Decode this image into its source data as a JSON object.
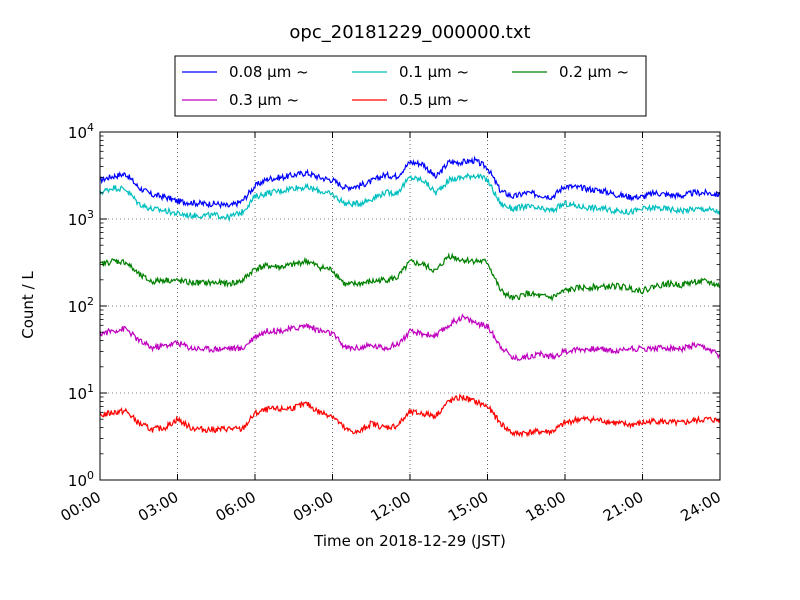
{
  "chart_data": {
    "type": "line",
    "title": "opc_20181229_000000.txt",
    "xlabel": "Time on 2018-12-29 (JST)",
    "ylabel": "Count / L",
    "y_scale": "log",
    "ylim": [
      1,
      10000
    ],
    "xlim_hours": [
      0,
      24
    ],
    "x_tick_labels": [
      "00:00",
      "03:00",
      "06:00",
      "09:00",
      "12:00",
      "15:00",
      "18:00",
      "21:00",
      "24:00"
    ],
    "y_tick_labels": [
      {
        "base": "10",
        "exp": "0"
      },
      {
        "base": "10",
        "exp": "1"
      },
      {
        "base": "10",
        "exp": "2"
      },
      {
        "base": "10",
        "exp": "3"
      },
      {
        "base": "10",
        "exp": "4"
      }
    ],
    "grid": true,
    "legend_position": "top-center",
    "hours": [
      0,
      0.5,
      1,
      1.5,
      2,
      2.5,
      3,
      3.5,
      4,
      4.5,
      5,
      5.5,
      6,
      6.5,
      7,
      7.5,
      8,
      8.5,
      9,
      9.5,
      10,
      10.5,
      11,
      11.5,
      12,
      12.5,
      13,
      13.5,
      14,
      14.5,
      15,
      15.5,
      16,
      16.5,
      17,
      17.5,
      18,
      18.5,
      19,
      19.5,
      20,
      20.5,
      21,
      21.5,
      22,
      22.5,
      23,
      23.5,
      24
    ],
    "series": [
      {
        "name": "0.08 μm ~",
        "color": "#0000ff",
        "values": [
          2800,
          3100,
          3300,
          2300,
          1900,
          1800,
          1600,
          1550,
          1500,
          1500,
          1400,
          1600,
          2400,
          2900,
          3000,
          3200,
          3400,
          3000,
          2800,
          2300,
          2400,
          2700,
          3200,
          3100,
          4500,
          4300,
          3000,
          4500,
          4500,
          4700,
          3900,
          2100,
          1800,
          2000,
          1900,
          1800,
          2400,
          2300,
          2200,
          2100,
          1900,
          1800,
          1800,
          2000,
          1900,
          1850,
          2000,
          2000,
          1900
        ]
      },
      {
        "name": "0.1 μm ~",
        "color": "#00bfbf",
        "values": [
          2000,
          2300,
          2200,
          1500,
          1300,
          1250,
          1150,
          1100,
          1100,
          1100,
          1050,
          1200,
          1800,
          2000,
          2100,
          2300,
          2300,
          2100,
          1900,
          1500,
          1500,
          1700,
          2000,
          2000,
          3000,
          2800,
          2000,
          2800,
          3000,
          3200,
          2800,
          1500,
          1300,
          1400,
          1300,
          1250,
          1500,
          1400,
          1350,
          1300,
          1250,
          1200,
          1300,
          1350,
          1300,
          1250,
          1300,
          1300,
          1200
        ]
      },
      {
        "name": "0.2 μm ~",
        "color": "#008000",
        "values": [
          300,
          330,
          320,
          230,
          190,
          200,
          195,
          185,
          185,
          185,
          180,
          195,
          270,
          290,
          280,
          300,
          330,
          280,
          260,
          175,
          180,
          190,
          200,
          210,
          320,
          300,
          250,
          380,
          340,
          330,
          320,
          150,
          120,
          140,
          130,
          125,
          150,
          160,
          165,
          165,
          170,
          160,
          150,
          170,
          180,
          175,
          190,
          190,
          170
        ]
      },
      {
        "name": "0.3 μm ~",
        "color": "#bf00bf",
        "values": [
          48,
          52,
          55,
          40,
          33,
          35,
          38,
          33,
          32,
          32,
          33,
          32,
          45,
          52,
          52,
          55,
          60,
          52,
          48,
          33,
          33,
          35,
          33,
          36,
          50,
          48,
          45,
          60,
          75,
          65,
          58,
          35,
          25,
          26,
          28,
          26,
          30,
          32,
          32,
          32,
          30,
          33,
          32,
          33,
          33,
          32,
          35,
          32,
          27
        ]
      },
      {
        "name": "0.5 μm ~",
        "color": "#ff0000",
        "values": [
          5.5,
          6,
          6.2,
          4.5,
          3.8,
          4,
          5,
          4,
          3.8,
          3.8,
          3.9,
          3.8,
          5.8,
          6.5,
          6.5,
          6.8,
          7.5,
          6,
          5.5,
          3.8,
          3.5,
          4.5,
          4,
          4.2,
          6,
          5.8,
          5.5,
          8,
          9,
          8,
          7,
          4.5,
          3.4,
          3.5,
          3.6,
          3.6,
          4.5,
          5,
          5,
          4.8,
          4.5,
          4.3,
          4.5,
          4.8,
          4.6,
          4.5,
          4.8,
          5,
          4.8
        ]
      }
    ]
  }
}
